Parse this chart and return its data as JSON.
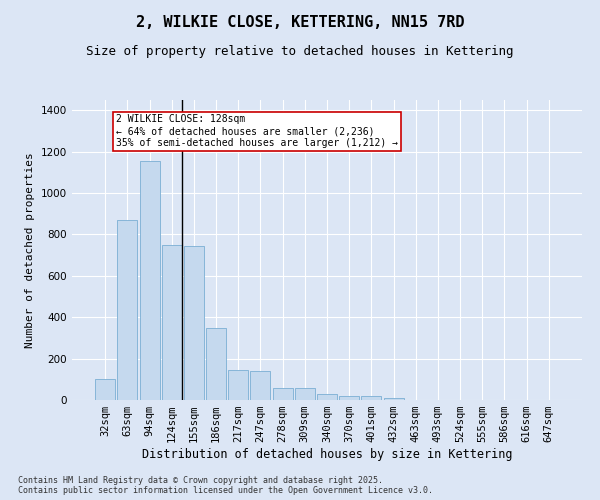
{
  "title": "2, WILKIE CLOSE, KETTERING, NN15 7RD",
  "subtitle": "Size of property relative to detached houses in Kettering",
  "xlabel": "Distribution of detached houses by size in Kettering",
  "ylabel": "Number of detached properties",
  "categories": [
    "32sqm",
    "63sqm",
    "94sqm",
    "124sqm",
    "155sqm",
    "186sqm",
    "217sqm",
    "247sqm",
    "278sqm",
    "309sqm",
    "340sqm",
    "370sqm",
    "401sqm",
    "432sqm",
    "463sqm",
    "493sqm",
    "524sqm",
    "555sqm",
    "586sqm",
    "616sqm",
    "647sqm"
  ],
  "values": [
    100,
    870,
    1155,
    750,
    745,
    350,
    145,
    140,
    60,
    60,
    30,
    20,
    20,
    10,
    0,
    0,
    0,
    0,
    0,
    0,
    0
  ],
  "bar_color": "#c5d9ee",
  "bar_edge_color": "#7aaed4",
  "marker_bar_index": 3,
  "marker_line_color": "#000000",
  "annotation_text": "2 WILKIE CLOSE: 128sqm\n← 64% of detached houses are smaller (2,236)\n35% of semi-detached houses are larger (1,212) →",
  "annotation_box_color": "#ffffff",
  "annotation_box_edge_color": "#cc0000",
  "annotation_fontsize": 7,
  "background_color": "#dce6f5",
  "plot_bg_color": "#dce6f5",
  "ylim": [
    0,
    1450
  ],
  "yticks": [
    0,
    200,
    400,
    600,
    800,
    1000,
    1200,
    1400
  ],
  "footnote": "Contains HM Land Registry data © Crown copyright and database right 2025.\nContains public sector information licensed under the Open Government Licence v3.0.",
  "title_fontsize": 11,
  "subtitle_fontsize": 9,
  "xlabel_fontsize": 8.5,
  "ylabel_fontsize": 8,
  "tick_fontsize": 7.5,
  "footnote_fontsize": 6
}
